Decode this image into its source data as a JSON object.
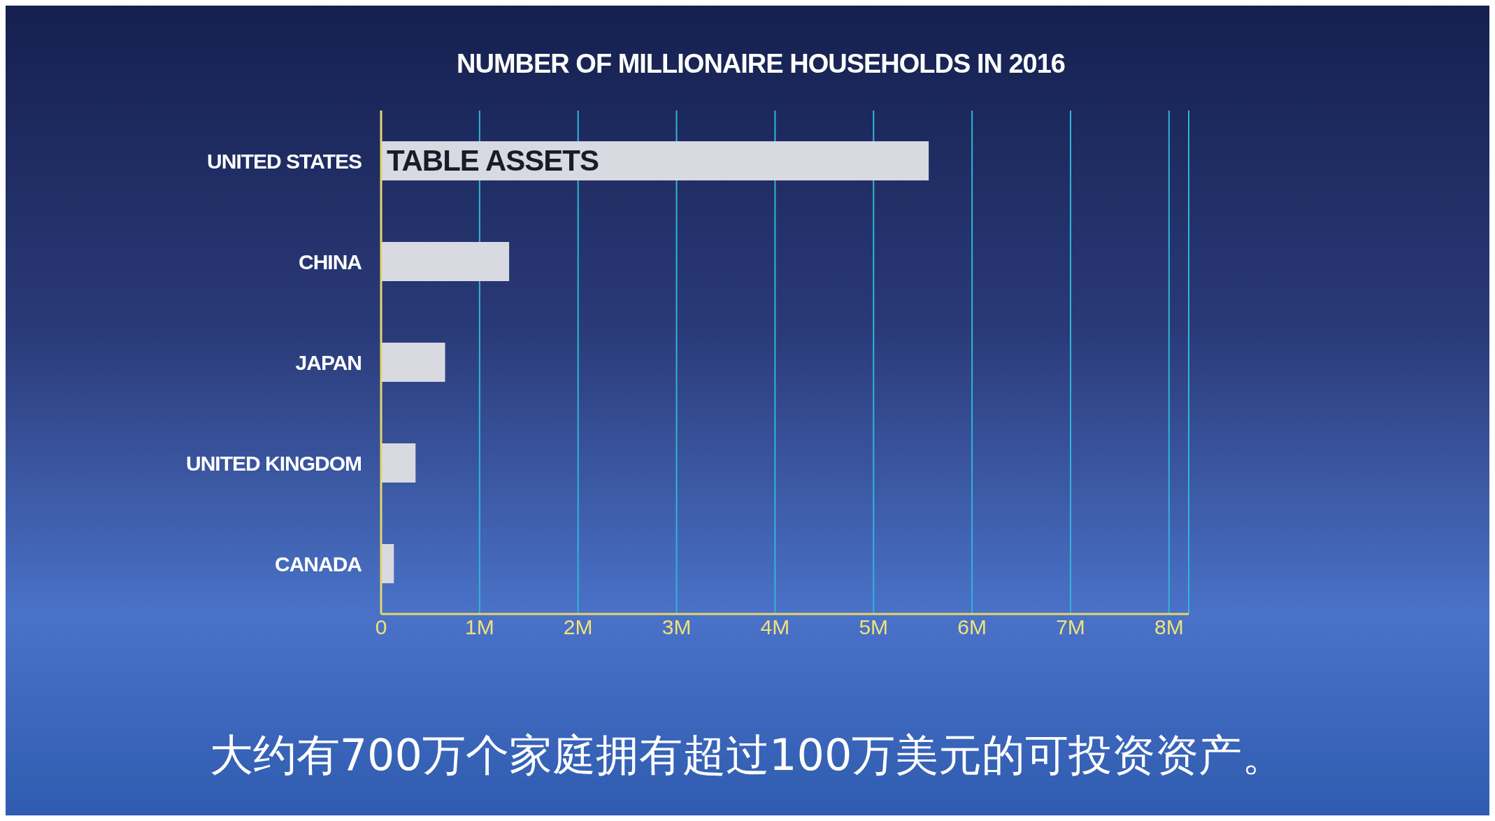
{
  "chart_data": {
    "type": "bar",
    "orientation": "horizontal",
    "title": "NUMBER OF MILLIONAIRE HOUSEHOLDS IN 2016",
    "categories": [
      "UNITED STATES",
      "CHINA",
      "JAPAN",
      "UNITED KINGDOM",
      "CANADA"
    ],
    "values": [
      5.56,
      1.3,
      0.65,
      0.35,
      0.13
    ],
    "color": "#d9d9e2",
    "xlim": [
      0,
      8.2
    ],
    "xticks": [
      0,
      {
        "value": 1,
        "label": "1M"
      },
      {
        "value": 2,
        "label": "2M"
      },
      {
        "value": 3,
        "label": "3M"
      },
      {
        "value": 4,
        "label": "4M"
      },
      {
        "value": 5,
        "label": "5M"
      },
      {
        "value": 6,
        "label": "6M"
      },
      {
        "value": 7,
        "label": "7M"
      },
      {
        "value": 8,
        "label": "8M"
      }
    ],
    "grid": "x",
    "annotations": [
      "TABLE ASSETS",
      "大约有700万个家庭拥有超过100万美元的可投资资产。"
    ]
  }
}
